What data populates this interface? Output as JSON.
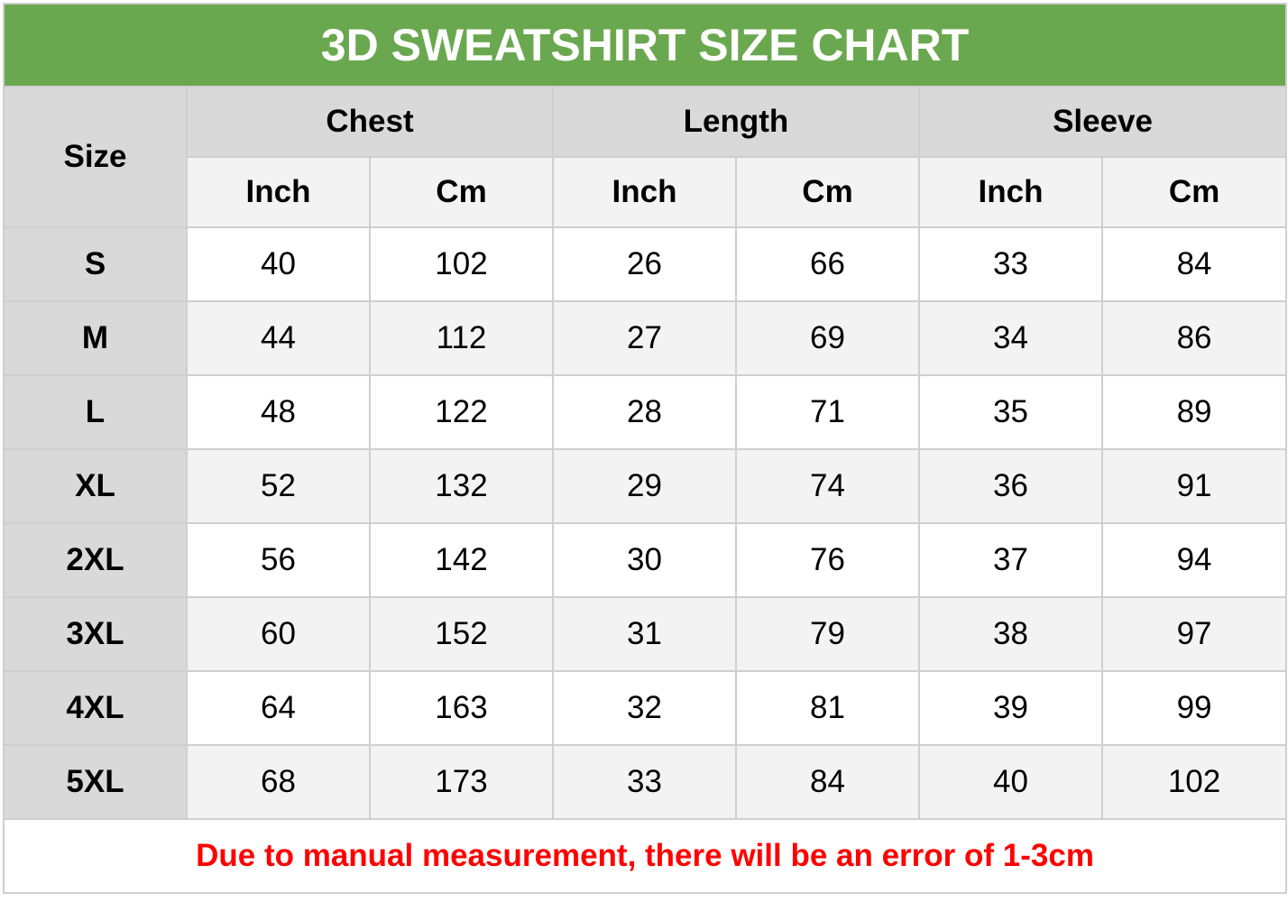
{
  "title": "3D SWEATSHIRT SIZE CHART",
  "header": {
    "size_label": "Size",
    "groups": [
      "Chest",
      "Length",
      "Sleeve"
    ],
    "units": [
      "Inch",
      "Cm",
      "Inch",
      "Cm",
      "Inch",
      "Cm"
    ]
  },
  "rows": [
    {
      "size": "S",
      "values": [
        "40",
        "102",
        "26",
        "66",
        "33",
        "84"
      ]
    },
    {
      "size": "M",
      "values": [
        "44",
        "112",
        "27",
        "69",
        "34",
        "86"
      ]
    },
    {
      "size": "L",
      "values": [
        "48",
        "122",
        "28",
        "71",
        "35",
        "89"
      ]
    },
    {
      "size": "XL",
      "values": [
        "52",
        "132",
        "29",
        "74",
        "36",
        "91"
      ]
    },
    {
      "size": "2XL",
      "values": [
        "56",
        "142",
        "30",
        "76",
        "37",
        "94"
      ]
    },
    {
      "size": "3XL",
      "values": [
        "60",
        "152",
        "31",
        "79",
        "38",
        "97"
      ]
    },
    {
      "size": "4XL",
      "values": [
        "64",
        "163",
        "32",
        "81",
        "39",
        "99"
      ]
    },
    {
      "size": "5XL",
      "values": [
        "68",
        "173",
        "33",
        "84",
        "40",
        "102"
      ]
    }
  ],
  "note": "Due to manual measurement, there will be an error of 1-3cm",
  "colors": {
    "title_bg": "#6aa84f",
    "header_bg": "#d9d9d9",
    "alt_row_bg": "#f3f3f3",
    "note_text": "#ff0000"
  }
}
